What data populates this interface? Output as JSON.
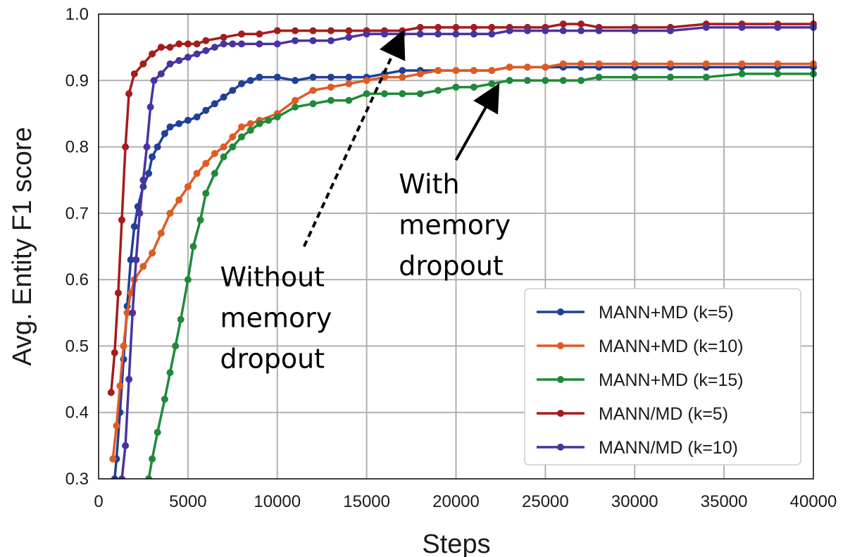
{
  "chart_data": {
    "type": "line",
    "title": "",
    "xlabel": "Steps",
    "ylabel": "Avg. Entity F1 score",
    "xlim": [
      0,
      40000
    ],
    "ylim": [
      0.3,
      1.0
    ],
    "x_ticks": [
      0,
      5000,
      10000,
      15000,
      20000,
      25000,
      30000,
      35000,
      40000
    ],
    "x_tick_labels": [
      "0",
      "5000",
      "10000",
      "15000",
      "20000",
      "25000",
      "30000",
      "35000",
      "40000"
    ],
    "y_ticks": [
      0.3,
      0.4,
      0.5,
      0.6,
      0.7,
      0.8,
      0.9,
      1.0
    ],
    "y_tick_labels": [
      "0.3",
      "0.4",
      "0.5",
      "0.6",
      "0.7",
      "0.8",
      "0.9",
      "1.0"
    ],
    "grid": true,
    "legend_position": "lower-right",
    "series": [
      {
        "name": "MANN+MD (k=5)",
        "color": "#1f3f99",
        "points": [
          [
            900,
            0.3
          ],
          [
            1000,
            0.33
          ],
          [
            1200,
            0.4
          ],
          [
            1400,
            0.48
          ],
          [
            1600,
            0.56
          ],
          [
            1800,
            0.63
          ],
          [
            2000,
            0.68
          ],
          [
            2200,
            0.71
          ],
          [
            2500,
            0.74
          ],
          [
            2800,
            0.76
          ],
          [
            3000,
            0.785
          ],
          [
            3300,
            0.8
          ],
          [
            3700,
            0.82
          ],
          [
            4000,
            0.83
          ],
          [
            4500,
            0.835
          ],
          [
            5000,
            0.84
          ],
          [
            5500,
            0.845
          ],
          [
            6000,
            0.855
          ],
          [
            6500,
            0.865
          ],
          [
            7000,
            0.875
          ],
          [
            7500,
            0.885
          ],
          [
            8000,
            0.895
          ],
          [
            8500,
            0.9
          ],
          [
            9000,
            0.905
          ],
          [
            10000,
            0.905
          ],
          [
            11000,
            0.9
          ],
          [
            12000,
            0.905
          ],
          [
            13000,
            0.905
          ],
          [
            14000,
            0.905
          ],
          [
            15000,
            0.905
          ],
          [
            16000,
            0.91
          ],
          [
            17000,
            0.915
          ],
          [
            18000,
            0.915
          ],
          [
            19000,
            0.915
          ],
          [
            20000,
            0.915
          ],
          [
            21000,
            0.915
          ],
          [
            22000,
            0.915
          ],
          [
            23000,
            0.92
          ],
          [
            24000,
            0.92
          ],
          [
            25000,
            0.92
          ],
          [
            26000,
            0.92
          ],
          [
            27000,
            0.92
          ],
          [
            28000,
            0.92
          ],
          [
            30000,
            0.92
          ],
          [
            32000,
            0.92
          ],
          [
            34000,
            0.92
          ],
          [
            36000,
            0.92
          ],
          [
            38000,
            0.92
          ],
          [
            40000,
            0.92
          ]
        ]
      },
      {
        "name": "MANN+MD (k=10)",
        "color": "#e05a24",
        "points": [
          [
            800,
            0.33
          ],
          [
            1000,
            0.38
          ],
          [
            1200,
            0.44
          ],
          [
            1400,
            0.5
          ],
          [
            1600,
            0.55
          ],
          [
            1800,
            0.58
          ],
          [
            2000,
            0.6
          ],
          [
            2500,
            0.62
          ],
          [
            3000,
            0.64
          ],
          [
            3500,
            0.67
          ],
          [
            4000,
            0.7
          ],
          [
            4500,
            0.72
          ],
          [
            5000,
            0.74
          ],
          [
            5500,
            0.76
          ],
          [
            6000,
            0.775
          ],
          [
            6500,
            0.79
          ],
          [
            7000,
            0.8
          ],
          [
            7500,
            0.815
          ],
          [
            8000,
            0.83
          ],
          [
            8500,
            0.835
          ],
          [
            9000,
            0.84
          ],
          [
            10000,
            0.85
          ],
          [
            11000,
            0.87
          ],
          [
            12000,
            0.885
          ],
          [
            13000,
            0.89
          ],
          [
            14000,
            0.895
          ],
          [
            15000,
            0.9
          ],
          [
            16000,
            0.905
          ],
          [
            17000,
            0.905
          ],
          [
            18000,
            0.91
          ],
          [
            19000,
            0.915
          ],
          [
            20000,
            0.915
          ],
          [
            21000,
            0.915
          ],
          [
            22000,
            0.915
          ],
          [
            23000,
            0.92
          ],
          [
            24000,
            0.92
          ],
          [
            25000,
            0.92
          ],
          [
            26000,
            0.925
          ],
          [
            27000,
            0.925
          ],
          [
            28000,
            0.925
          ],
          [
            30000,
            0.925
          ],
          [
            32000,
            0.925
          ],
          [
            34000,
            0.925
          ],
          [
            36000,
            0.925
          ],
          [
            38000,
            0.925
          ],
          [
            40000,
            0.925
          ]
        ]
      },
      {
        "name": "MANN+MD (k=15)",
        "color": "#1f8a3a",
        "points": [
          [
            2800,
            0.3
          ],
          [
            3000,
            0.33
          ],
          [
            3300,
            0.37
          ],
          [
            3700,
            0.42
          ],
          [
            4000,
            0.46
          ],
          [
            4300,
            0.5
          ],
          [
            4600,
            0.54
          ],
          [
            5000,
            0.6
          ],
          [
            5300,
            0.65
          ],
          [
            5700,
            0.69
          ],
          [
            6000,
            0.73
          ],
          [
            6500,
            0.76
          ],
          [
            7000,
            0.785
          ],
          [
            7500,
            0.8
          ],
          [
            8000,
            0.815
          ],
          [
            8500,
            0.825
          ],
          [
            9000,
            0.835
          ],
          [
            9500,
            0.84
          ],
          [
            10000,
            0.845
          ],
          [
            11000,
            0.86
          ],
          [
            12000,
            0.865
          ],
          [
            13000,
            0.87
          ],
          [
            14000,
            0.87
          ],
          [
            15000,
            0.88
          ],
          [
            16000,
            0.88
          ],
          [
            17000,
            0.88
          ],
          [
            18000,
            0.88
          ],
          [
            19000,
            0.885
          ],
          [
            20000,
            0.89
          ],
          [
            21000,
            0.89
          ],
          [
            22000,
            0.895
          ],
          [
            23000,
            0.9
          ],
          [
            24000,
            0.9
          ],
          [
            25000,
            0.9
          ],
          [
            26000,
            0.9
          ],
          [
            27000,
            0.9
          ],
          [
            28000,
            0.905
          ],
          [
            30000,
            0.905
          ],
          [
            32000,
            0.905
          ],
          [
            34000,
            0.905
          ],
          [
            36000,
            0.91
          ],
          [
            38000,
            0.91
          ],
          [
            40000,
            0.91
          ]
        ]
      },
      {
        "name": "MANN/MD (k=5)",
        "color": "#a51c1c",
        "points": [
          [
            700,
            0.43
          ],
          [
            900,
            0.49
          ],
          [
            1100,
            0.58
          ],
          [
            1300,
            0.69
          ],
          [
            1500,
            0.8
          ],
          [
            1700,
            0.88
          ],
          [
            2000,
            0.91
          ],
          [
            2500,
            0.925
          ],
          [
            3000,
            0.94
          ],
          [
            3500,
            0.95
          ],
          [
            4000,
            0.95
          ],
          [
            4500,
            0.955
          ],
          [
            5000,
            0.955
          ],
          [
            5500,
            0.955
          ],
          [
            6000,
            0.96
          ],
          [
            7000,
            0.965
          ],
          [
            8000,
            0.97
          ],
          [
            9000,
            0.97
          ],
          [
            10000,
            0.975
          ],
          [
            11000,
            0.975
          ],
          [
            12000,
            0.975
          ],
          [
            13000,
            0.975
          ],
          [
            14000,
            0.975
          ],
          [
            15000,
            0.975
          ],
          [
            16000,
            0.975
          ],
          [
            17000,
            0.975
          ],
          [
            18000,
            0.98
          ],
          [
            19000,
            0.98
          ],
          [
            20000,
            0.98
          ],
          [
            21000,
            0.98
          ],
          [
            22000,
            0.98
          ],
          [
            23000,
            0.98
          ],
          [
            24000,
            0.98
          ],
          [
            25000,
            0.98
          ],
          [
            26000,
            0.985
          ],
          [
            27000,
            0.985
          ],
          [
            28000,
            0.98
          ],
          [
            30000,
            0.98
          ],
          [
            32000,
            0.98
          ],
          [
            34000,
            0.985
          ],
          [
            36000,
            0.985
          ],
          [
            38000,
            0.985
          ],
          [
            40000,
            0.985
          ]
        ]
      },
      {
        "name": "MANN/MD (k=10)",
        "color": "#4a33a0",
        "points": [
          [
            1300,
            0.3
          ],
          [
            1500,
            0.35
          ],
          [
            1700,
            0.45
          ],
          [
            1900,
            0.55
          ],
          [
            2100,
            0.63
          ],
          [
            2300,
            0.7
          ],
          [
            2500,
            0.75
          ],
          [
            2700,
            0.8
          ],
          [
            2900,
            0.86
          ],
          [
            3100,
            0.9
          ],
          [
            3500,
            0.91
          ],
          [
            4000,
            0.925
          ],
          [
            4500,
            0.93
          ],
          [
            5000,
            0.935
          ],
          [
            5500,
            0.94
          ],
          [
            6000,
            0.945
          ],
          [
            6500,
            0.95
          ],
          [
            7000,
            0.955
          ],
          [
            7500,
            0.955
          ],
          [
            8000,
            0.955
          ],
          [
            9000,
            0.955
          ],
          [
            10000,
            0.955
          ],
          [
            11000,
            0.96
          ],
          [
            12000,
            0.96
          ],
          [
            13000,
            0.96
          ],
          [
            14000,
            0.965
          ],
          [
            15000,
            0.97
          ],
          [
            16000,
            0.97
          ],
          [
            17000,
            0.97
          ],
          [
            18000,
            0.97
          ],
          [
            19000,
            0.97
          ],
          [
            20000,
            0.97
          ],
          [
            21000,
            0.97
          ],
          [
            22000,
            0.97
          ],
          [
            23000,
            0.975
          ],
          [
            24000,
            0.975
          ],
          [
            25000,
            0.975
          ],
          [
            26000,
            0.975
          ],
          [
            27000,
            0.975
          ],
          [
            28000,
            0.975
          ],
          [
            30000,
            0.975
          ],
          [
            32000,
            0.975
          ],
          [
            34000,
            0.98
          ],
          [
            36000,
            0.98
          ],
          [
            38000,
            0.98
          ],
          [
            40000,
            0.98
          ]
        ]
      }
    ],
    "annotations": [
      {
        "name": "without-dropout-annotation",
        "lines": [
          "Without",
          "memory",
          "dropout"
        ],
        "arrow_style": "dashed",
        "text_anchor_data": [
          6800,
          0.59
        ],
        "arrow_from_data": [
          11500,
          0.65
        ],
        "arrow_to_data": [
          16900,
          0.965
        ]
      },
      {
        "name": "with-dropout-annotation",
        "lines": [
          "With",
          "memory",
          "dropout"
        ],
        "arrow_style": "solid",
        "text_anchor_data": [
          16800,
          0.73
        ],
        "arrow_from_data": [
          20000,
          0.78
        ],
        "arrow_to_data": [
          22200,
          0.885
        ]
      }
    ]
  }
}
